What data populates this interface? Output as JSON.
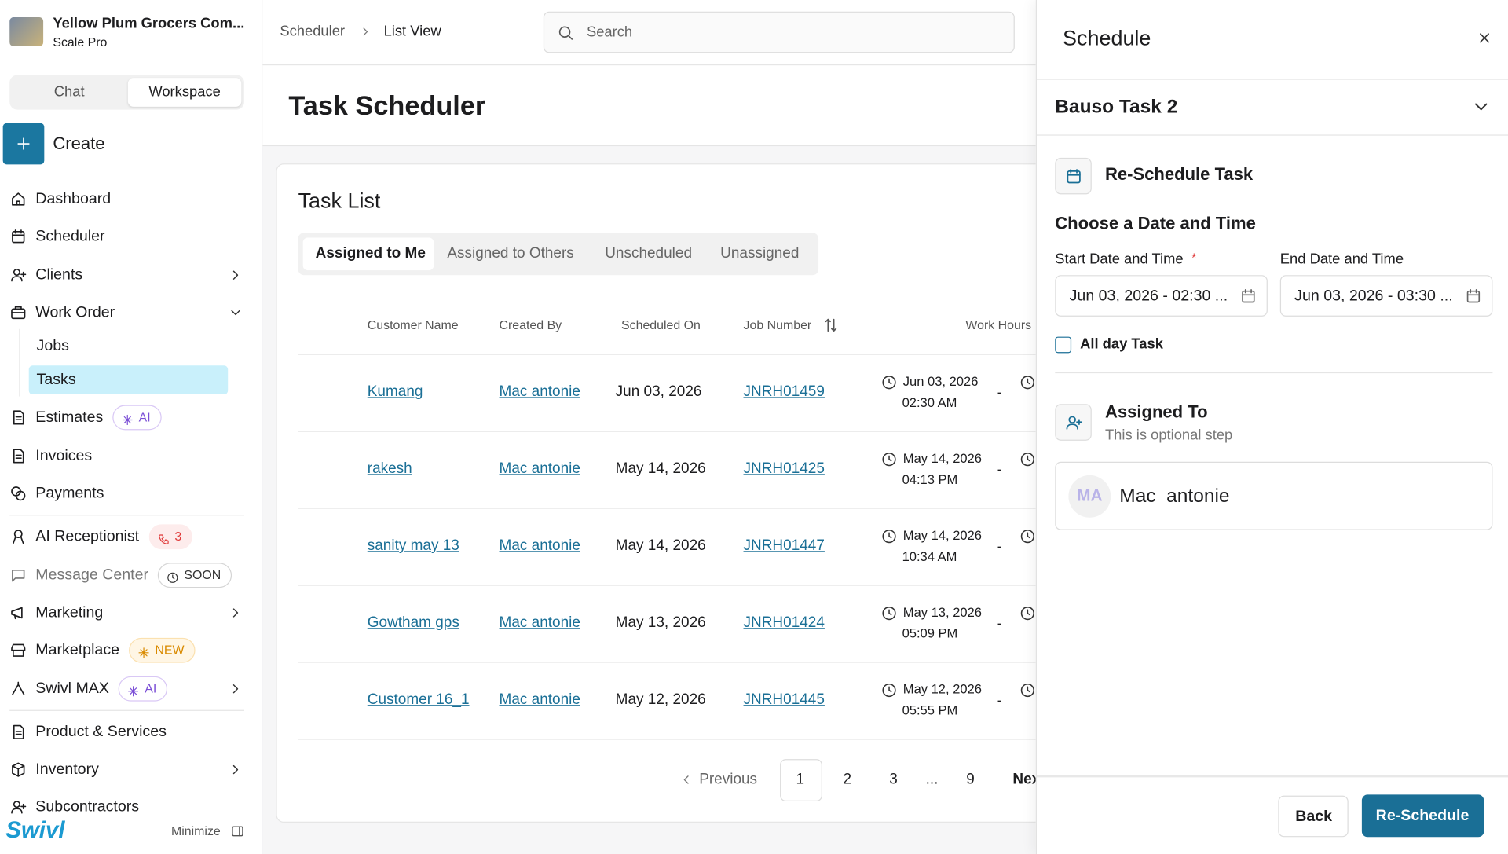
{
  "sidebar": {
    "org_name": "Yellow Plum Grocers Com...",
    "plan": "Scale Pro",
    "tabs": [
      "Chat",
      "Workspace"
    ],
    "create": "Create",
    "nav": [
      {
        "label": "Dashboard"
      },
      {
        "label": "Scheduler"
      },
      {
        "label": "Clients",
        "chevron": "right"
      },
      {
        "label": "Work Order",
        "chevron": "down",
        "children": [
          {
            "label": "Jobs"
          },
          {
            "label": "Tasks",
            "selected": true
          }
        ]
      },
      {
        "label": "Estimates",
        "badge": "AI"
      },
      {
        "label": "Invoices"
      },
      {
        "label": "Payments"
      },
      {
        "label": "AI Receptionist",
        "badge": "3"
      },
      {
        "label": "Message Center",
        "badge": "SOON"
      },
      {
        "label": "Marketing",
        "chevron": "right"
      },
      {
        "label": "Marketplace",
        "badge": "NEW"
      },
      {
        "label": "Swivl MAX",
        "badge": "AI",
        "chevron": "right"
      },
      {
        "label": "Product & Services"
      },
      {
        "label": "Inventory",
        "chevron": "right"
      },
      {
        "label": "Subcontractors"
      }
    ],
    "logo": "Swivl",
    "minimize": "Minimize"
  },
  "header": {
    "breadcrumb": [
      "Scheduler",
      "List View"
    ],
    "search_placeholder": "Search"
  },
  "page_title": "Task Scheduler",
  "task_list": {
    "title": "Task List",
    "tabs": [
      "Assigned to Me",
      "Assigned to Others",
      "Unscheduled",
      "Unassigned"
    ],
    "columns": [
      "Customer Name",
      "Created By",
      "Scheduled On",
      "Job Number",
      "Work Hours"
    ],
    "range_separator": "-",
    "rows": [
      {
        "customer": "Kumang",
        "created_by": "Mac antonie",
        "scheduled_on": "Jun 03, 2026",
        "job_number": "JNRH01459",
        "start_date": "Jun 03, 2026",
        "start_time": "02:30 AM"
      },
      {
        "customer": "rakesh",
        "created_by": "Mac antonie",
        "scheduled_on": "May 14, 2026",
        "job_number": "JNRH01425",
        "start_date": "May 14, 2026",
        "start_time": "04:13 PM"
      },
      {
        "customer": "sanity may 13",
        "created_by": "Mac antonie",
        "scheduled_on": "May 14, 2026",
        "job_number": "JNRH01447",
        "start_date": "May 14, 2026",
        "start_time": "10:34 AM"
      },
      {
        "customer": "Gowtham gps",
        "created_by": "Mac antonie",
        "scheduled_on": "May 13, 2026",
        "job_number": "JNRH01424",
        "start_date": "May 13, 2026",
        "start_time": "05:09 PM"
      },
      {
        "customer": "Customer 16_1",
        "created_by": "Mac antonie",
        "scheduled_on": "May 12, 2026",
        "job_number": "JNRH01445",
        "start_date": "May 12, 2026",
        "start_time": "05:55 PM"
      }
    ],
    "pagination": {
      "previous": "Previous",
      "pages": [
        "1",
        "2",
        "3",
        "...",
        "9"
      ],
      "next": "Next"
    }
  },
  "panel": {
    "title": "Schedule",
    "task_name": "Bauso Task 2",
    "section": "Re-Schedule Task",
    "subtitle": "Choose a Date and Time",
    "start_label": "Start Date and Time",
    "required": "*",
    "end_label": "End Date and Time",
    "start_value": "Jun 03, 2026 - 02:30 ...",
    "end_value": "Jun 03, 2026 - 03:30 ...",
    "all_day": "All day Task",
    "assigned_title": "Assigned To",
    "assigned_hint": "This is optional step",
    "assignee_initials": "MA",
    "assignee_name": "Mac  antonie",
    "back": "Back",
    "submit": "Re-Schedule"
  }
}
